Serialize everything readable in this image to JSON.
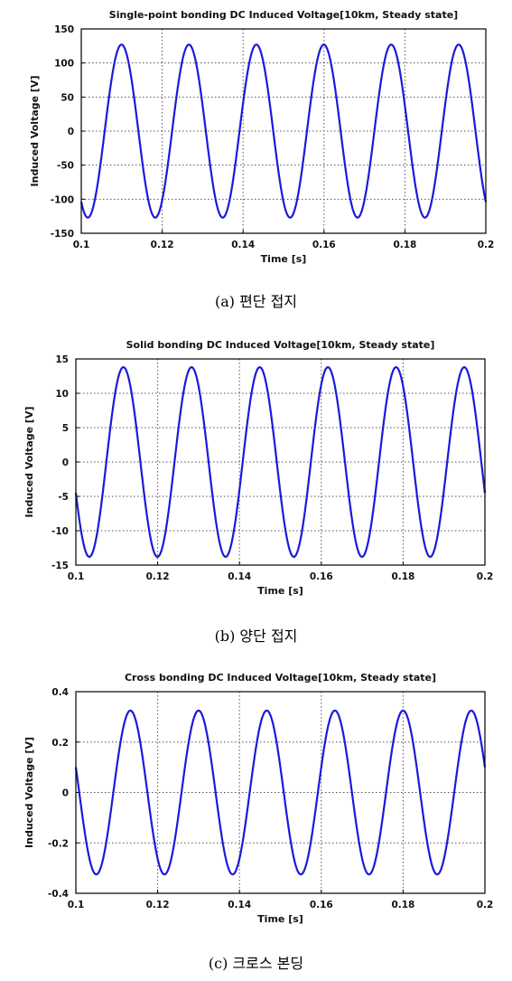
{
  "chart_data": [
    {
      "type": "line",
      "title": "Single-point bonding DC Induced Voltage[10km, Steady state]",
      "xlabel": "Time [s]",
      "ylabel": "Induced Voltage [V]",
      "xlim": [
        0.1,
        0.2
      ],
      "ylim": [
        -150,
        150
      ],
      "xticks": [
        "0.1",
        "0.12",
        "0.14",
        "0.16",
        "0.18",
        "0.2"
      ],
      "yticks": [
        "150",
        "100",
        "50",
        "0",
        "-50",
        "-100",
        "-150"
      ],
      "grid": true,
      "color": "#1a1adb",
      "series": [
        {
          "frequency_hz": 60,
          "amplitude": 127,
          "value_at_0_1s": -104
        }
      ],
      "caption": "(a) 편단 접지"
    },
    {
      "type": "line",
      "title": "Solid bonding DC Induced Voltage[10km, Steady state]",
      "xlabel": "Time [s]",
      "ylabel": "Induced Voltage [V]",
      "xlim": [
        0.1,
        0.2
      ],
      "ylim": [
        -15,
        15
      ],
      "xticks": [
        "0.1",
        "0.12",
        "0.14",
        "0.16",
        "0.18",
        "0.2"
      ],
      "yticks": [
        "15",
        "10",
        "5",
        "0",
        "-5",
        "-10",
        "-15"
      ],
      "grid": true,
      "color": "#1a1adb",
      "series": [
        {
          "frequency_hz": 60,
          "amplitude": 13.8,
          "value_at_0_1s": -4.5
        }
      ],
      "caption": "(b) 양단 접지"
    },
    {
      "type": "line",
      "title": "Cross bonding DC Induced Voltage[10km, Steady state]",
      "xlabel": "Time [s]",
      "ylabel": "Induced Voltage [V]",
      "xlim": [
        0.1,
        0.2
      ],
      "ylim": [
        -0.4,
        0.4
      ],
      "xticks": [
        "0.1",
        "0.12",
        "0.14",
        "0.16",
        "0.18",
        "0.2"
      ],
      "yticks": [
        "0.4",
        "0.2",
        "0",
        "-0.2",
        "-0.4"
      ],
      "grid": true,
      "color": "#1a1adb",
      "series": [
        {
          "frequency_hz": 60,
          "amplitude": 0.325,
          "value_at_0_1s": 0.1
        }
      ],
      "caption": "(c) 크로스 본딩"
    }
  ]
}
